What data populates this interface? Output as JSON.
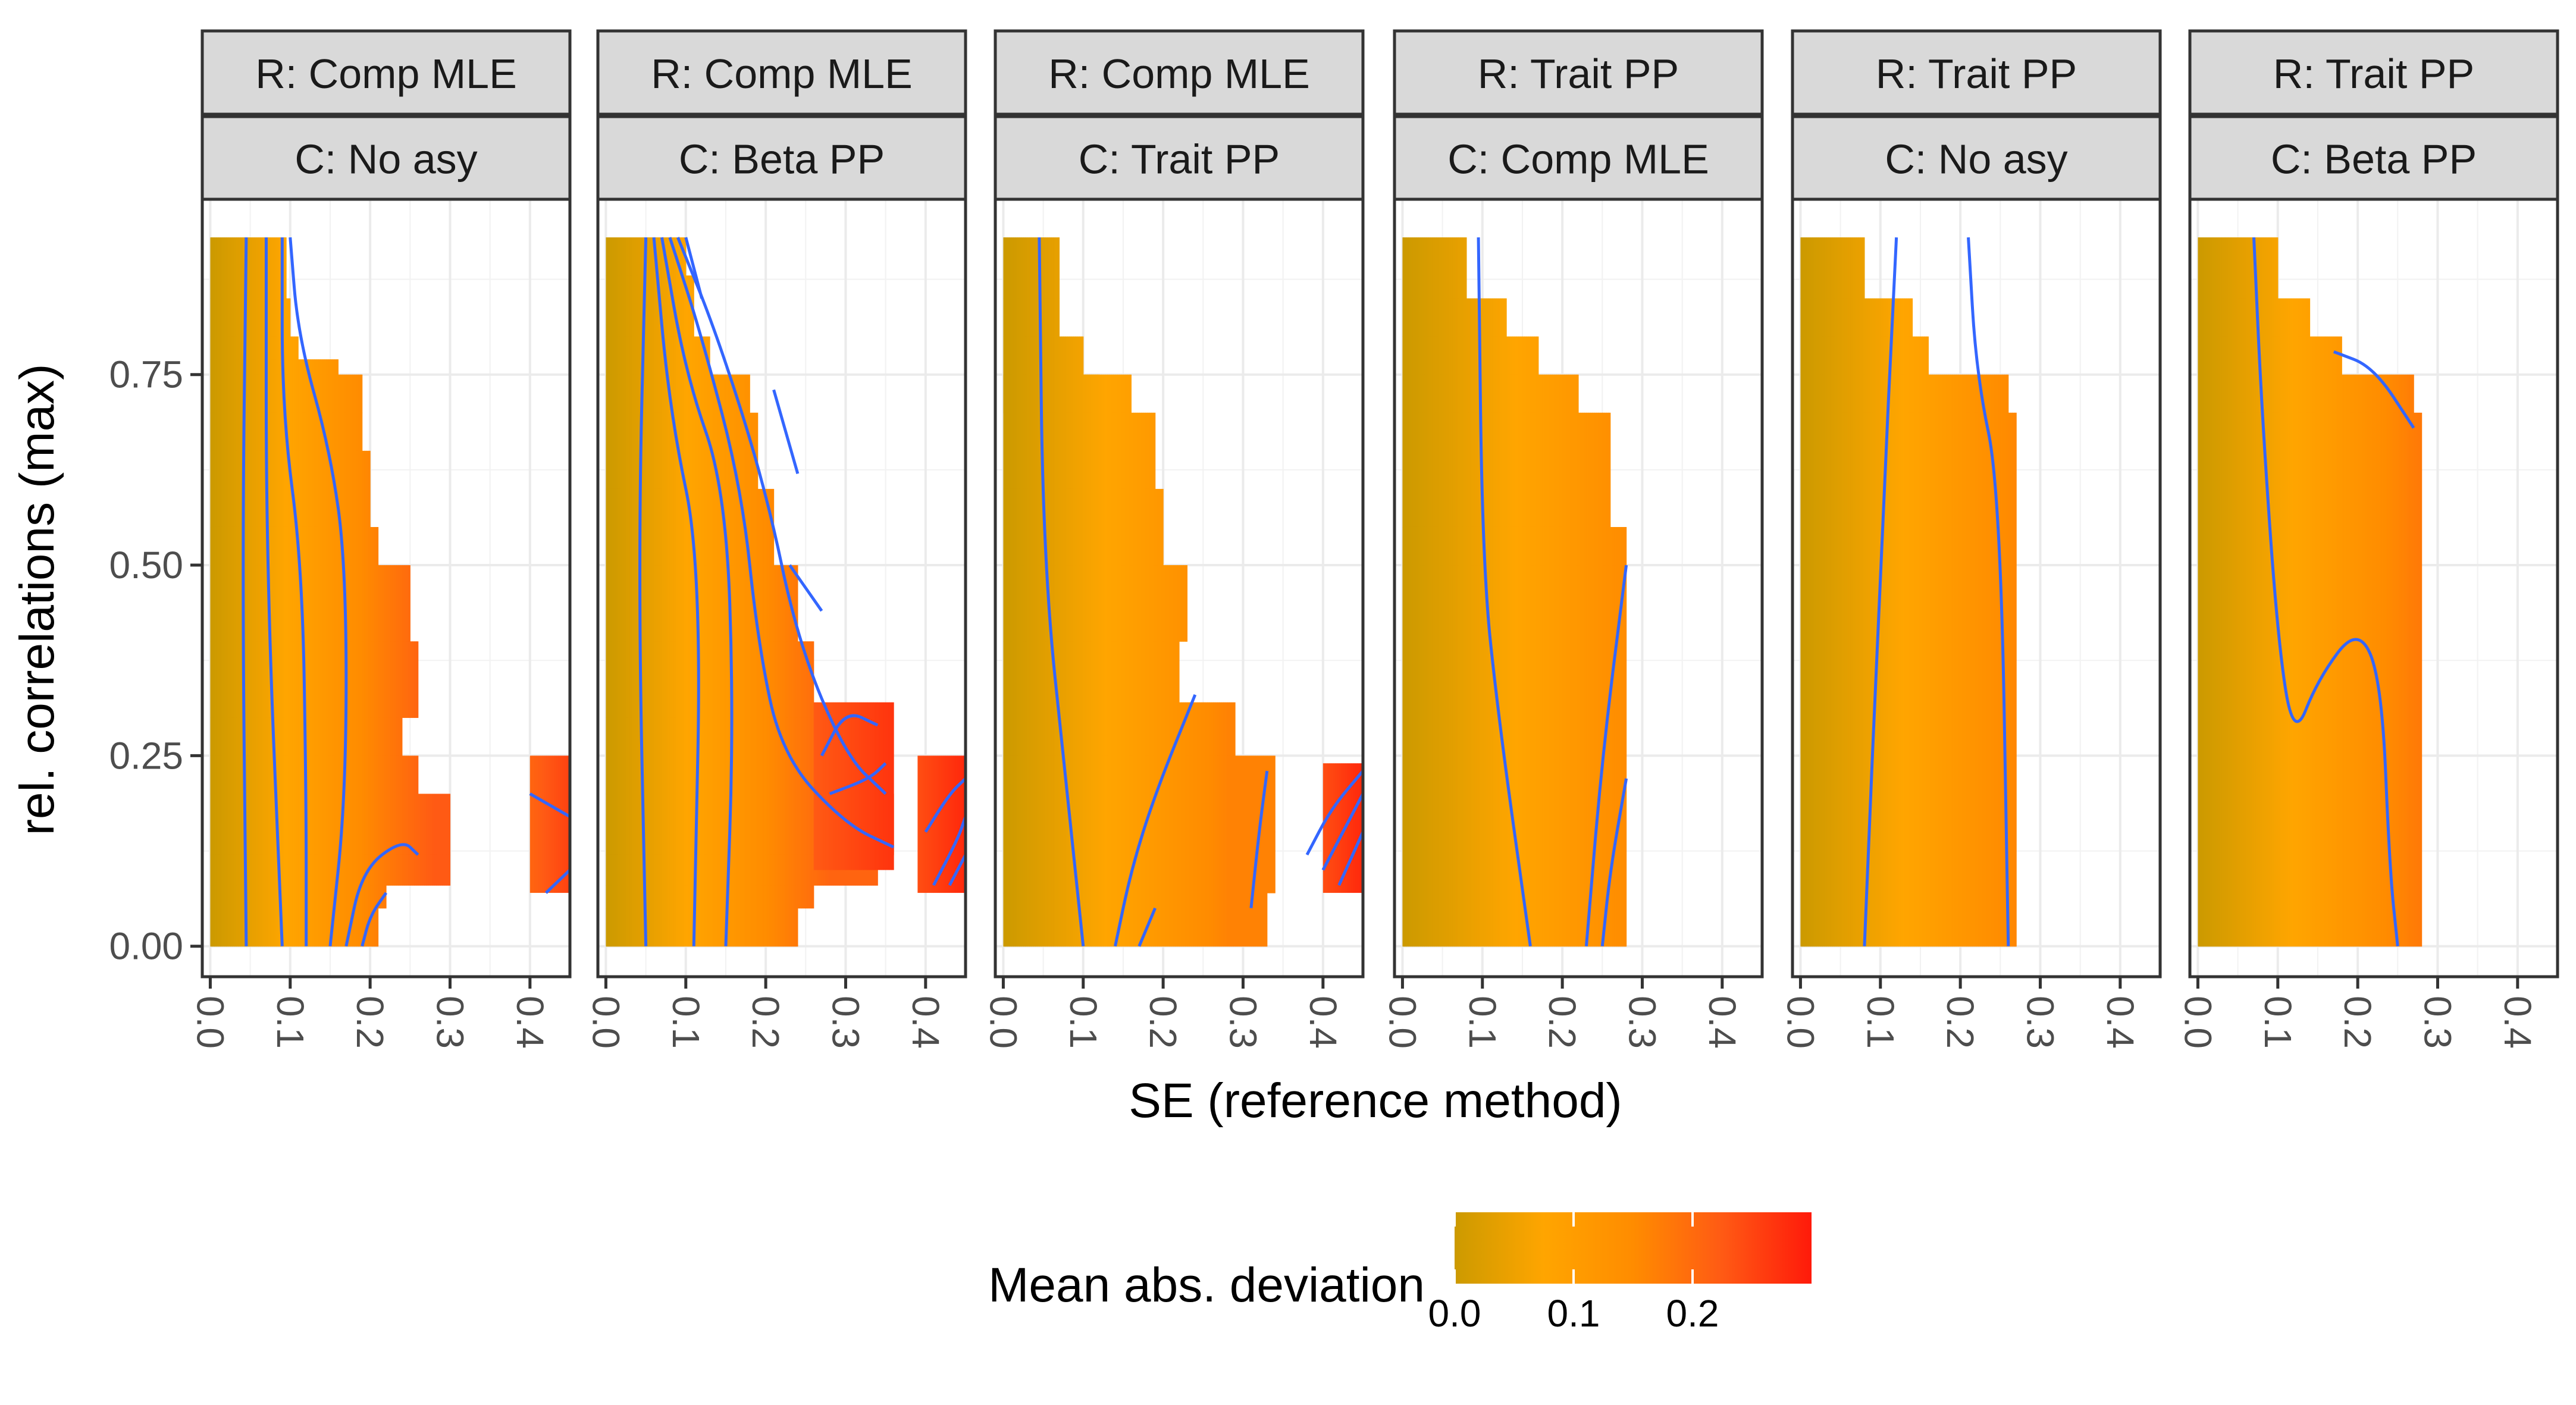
{
  "chart_data": {
    "type": "heatmap",
    "title": "",
    "xlabel": "SE (reference method)",
    "ylabel": "rel. correlations (max)",
    "xlim": [
      -0.01,
      0.45
    ],
    "ylim": [
      -0.04,
      0.98
    ],
    "x_ticks": [
      0.0,
      0.1,
      0.2,
      0.3,
      0.4
    ],
    "x_tick_labels": [
      "0.0",
      "0.1",
      "0.2",
      "0.3",
      "0.4"
    ],
    "y_ticks": [
      0.0,
      0.25,
      0.5,
      0.75
    ],
    "y_tick_labels": [
      "0.00",
      "0.25",
      "0.50",
      "0.75"
    ],
    "grid": true,
    "contour_color": "#3366ff",
    "legend": {
      "title": "Mean abs. deviation",
      "placement": "bottom",
      "range": [
        0.0,
        0.3
      ],
      "ticks": [
        0.0,
        0.1,
        0.2
      ],
      "tick_labels": [
        "0.0",
        "0.1",
        "0.2"
      ],
      "colors": [
        "#cc9a00",
        "#ffa500",
        "#ff8c00",
        "#ff5a14",
        "#ff1a0a"
      ]
    },
    "facets": [
      {
        "row_label": "R: Comp MLE",
        "col_label": "C: No asy",
        "level": 0.75,
        "coverage": [
          [
            0.93,
            0.095
          ],
          [
            0.85,
            0.1
          ],
          [
            0.8,
            0.11
          ],
          [
            0.77,
            0.16
          ],
          [
            0.75,
            0.19
          ],
          [
            0.7,
            0.19
          ],
          [
            0.65,
            0.2
          ],
          [
            0.55,
            0.21
          ],
          [
            0.5,
            0.25
          ],
          [
            0.4,
            0.26
          ],
          [
            0.3,
            0.24
          ],
          [
            0.25,
            0.26
          ],
          [
            0.2,
            0.3
          ],
          [
            0.12,
            0.3
          ],
          [
            0.08,
            0.22
          ],
          [
            0.05,
            0.21
          ],
          [
            0.0,
            0.2
          ]
        ],
        "islands": [
          {
            "x0": 0.4,
            "x1": 0.45,
            "y0": 0.07,
            "y1": 0.25,
            "level": 0.85
          }
        ],
        "contours": [
          [
            [
              0.045,
              0.93
            ],
            [
              0.04,
              0.5
            ],
            [
              0.045,
              0.0
            ]
          ],
          [
            [
              0.07,
              0.93
            ],
            [
              0.07,
              0.5
            ],
            [
              0.09,
              0.0
            ]
          ],
          [
            [
              0.09,
              0.93
            ],
            [
              0.09,
              0.7
            ],
            [
              0.115,
              0.5
            ],
            [
              0.12,
              0.2
            ],
            [
              0.12,
              0.0
            ]
          ],
          [
            [
              0.1,
              0.93
            ],
            [
              0.11,
              0.8
            ],
            [
              0.15,
              0.65
            ],
            [
              0.17,
              0.5
            ],
            [
              0.17,
              0.2
            ],
            [
              0.15,
              0.0
            ]
          ],
          [
            [
              0.17,
              0.0
            ],
            [
              0.19,
              0.1
            ],
            [
              0.24,
              0.14
            ],
            [
              0.26,
              0.12
            ]
          ],
          [
            [
              0.19,
              0.0
            ],
            [
              0.2,
              0.04
            ],
            [
              0.22,
              0.07
            ]
          ],
          [
            [
              0.4,
              0.2
            ],
            [
              0.45,
              0.17
            ]
          ],
          [
            [
              0.42,
              0.07
            ],
            [
              0.45,
              0.1
            ]
          ]
        ]
      },
      {
        "row_label": "R: Comp MLE",
        "col_label": "C: Beta PP",
        "level": 0.7,
        "coverage": [
          [
            0.93,
            0.1
          ],
          [
            0.88,
            0.11
          ],
          [
            0.8,
            0.13
          ],
          [
            0.75,
            0.14
          ],
          [
            0.73,
            0.14
          ],
          [
            0.75,
            0.18
          ],
          [
            0.7,
            0.19
          ],
          [
            0.6,
            0.21
          ],
          [
            0.5,
            0.24
          ],
          [
            0.4,
            0.26
          ],
          [
            0.3,
            0.33
          ],
          [
            0.2,
            0.36
          ],
          [
            0.12,
            0.34
          ],
          [
            0.08,
            0.26
          ],
          [
            0.05,
            0.24
          ],
          [
            0.0,
            0.2
          ]
        ],
        "islands": [
          {
            "x0": 0.39,
            "x1": 0.45,
            "y0": 0.07,
            "y1": 0.25,
            "level": 0.95
          },
          {
            "x0": 0.26,
            "x1": 0.36,
            "y0": 0.1,
            "y1": 0.32,
            "level": 0.9
          }
        ],
        "contours": [
          [
            [
              0.05,
              0.93
            ],
            [
              0.04,
              0.5
            ],
            [
              0.05,
              0.0
            ]
          ],
          [
            [
              0.06,
              0.93
            ],
            [
              0.08,
              0.7
            ],
            [
              0.12,
              0.5
            ],
            [
              0.11,
              0.0
            ]
          ],
          [
            [
              0.07,
              0.93
            ],
            [
              0.1,
              0.75
            ],
            [
              0.15,
              0.6
            ],
            [
              0.16,
              0.3
            ],
            [
              0.15,
              0.0
            ]
          ],
          [
            [
              0.08,
              0.93
            ],
            [
              0.12,
              0.8
            ],
            [
              0.17,
              0.6
            ],
            [
              0.19,
              0.4
            ],
            [
              0.22,
              0.25
            ],
            [
              0.3,
              0.16
            ],
            [
              0.36,
              0.13
            ]
          ],
          [
            [
              0.09,
              0.93
            ],
            [
              0.14,
              0.8
            ],
            [
              0.2,
              0.6
            ],
            [
              0.24,
              0.4
            ],
            [
              0.3,
              0.25
            ],
            [
              0.35,
              0.2
            ]
          ],
          [
            [
              0.1,
              0.93
            ],
            [
              0.12,
              0.85
            ]
          ],
          [
            [
              0.21,
              0.73
            ],
            [
              0.24,
              0.62
            ]
          ],
          [
            [
              0.23,
              0.5
            ],
            [
              0.27,
              0.44
            ]
          ],
          [
            [
              0.27,
              0.25
            ],
            [
              0.3,
              0.31
            ],
            [
              0.34,
              0.29
            ]
          ],
          [
            [
              0.28,
              0.2
            ],
            [
              0.33,
              0.22
            ],
            [
              0.35,
              0.24
            ]
          ],
          [
            [
              0.4,
              0.15
            ],
            [
              0.43,
              0.2
            ],
            [
              0.45,
              0.22
            ]
          ],
          [
            [
              0.41,
              0.08
            ],
            [
              0.44,
              0.14
            ],
            [
              0.45,
              0.17
            ]
          ],
          [
            [
              0.43,
              0.08
            ],
            [
              0.45,
              0.12
            ]
          ]
        ]
      },
      {
        "row_label": "R: Comp MLE",
        "col_label": "C: Trait PP",
        "level": 0.55,
        "coverage": [
          [
            0.93,
            0.07
          ],
          [
            0.85,
            0.07
          ],
          [
            0.8,
            0.1
          ],
          [
            0.75,
            0.12
          ],
          [
            0.7,
            0.12
          ],
          [
            0.72,
            0.14
          ],
          [
            0.75,
            0.16
          ],
          [
            0.7,
            0.19
          ],
          [
            0.6,
            0.2
          ],
          [
            0.5,
            0.23
          ],
          [
            0.4,
            0.22
          ],
          [
            0.32,
            0.29
          ],
          [
            0.25,
            0.34
          ],
          [
            0.15,
            0.34
          ],
          [
            0.07,
            0.33
          ],
          [
            0.0,
            0.23
          ]
        ],
        "islands": [
          {
            "x0": 0.4,
            "x1": 0.45,
            "y0": 0.07,
            "y1": 0.24,
            "level": 0.95
          }
        ],
        "contours": [
          [
            [
              0.045,
              0.93
            ],
            [
              0.05,
              0.5
            ],
            [
              0.08,
              0.2
            ],
            [
              0.1,
              0.0
            ]
          ],
          [
            [
              0.14,
              0.0
            ],
            [
              0.16,
              0.1
            ],
            [
              0.19,
              0.2
            ],
            [
              0.24,
              0.33
            ]
          ],
          [
            [
              0.17,
              0.0
            ],
            [
              0.19,
              0.05
            ]
          ],
          [
            [
              0.31,
              0.05
            ],
            [
              0.32,
              0.15
            ],
            [
              0.33,
              0.23
            ]
          ],
          [
            [
              0.38,
              0.12
            ],
            [
              0.41,
              0.18
            ],
            [
              0.45,
              0.23
            ]
          ],
          [
            [
              0.4,
              0.1
            ],
            [
              0.45,
              0.2
            ]
          ],
          [
            [
              0.42,
              0.08
            ],
            [
              0.45,
              0.15
            ]
          ]
        ]
      },
      {
        "row_label": "R: Trait PP",
        "col_label": "C: Comp MLE",
        "level": 0.5,
        "coverage": [
          [
            0.93,
            0.08
          ],
          [
            0.85,
            0.13
          ],
          [
            0.8,
            0.17
          ],
          [
            0.75,
            0.22
          ],
          [
            0.7,
            0.26
          ],
          [
            0.55,
            0.28
          ],
          [
            0.5,
            0.28
          ],
          [
            0.0,
            0.28
          ]
        ],
        "islands": [],
        "contours": [
          [
            [
              0.095,
              0.93
            ],
            [
              0.1,
              0.5
            ],
            [
              0.12,
              0.3
            ],
            [
              0.16,
              0.0
            ]
          ],
          [
            [
              0.23,
              0.0
            ],
            [
              0.25,
              0.25
            ],
            [
              0.28,
              0.5
            ]
          ],
          [
            [
              0.25,
              0.0
            ],
            [
              0.26,
              0.1
            ],
            [
              0.28,
              0.22
            ]
          ]
        ]
      },
      {
        "row_label": "R: Trait PP",
        "col_label": "C: No asy",
        "level": 0.55,
        "coverage": [
          [
            0.93,
            0.08
          ],
          [
            0.85,
            0.14
          ],
          [
            0.8,
            0.16
          ],
          [
            0.75,
            0.26
          ],
          [
            0.7,
            0.27
          ],
          [
            0.0,
            0.27
          ]
        ],
        "islands": [],
        "contours": [
          [
            [
              0.12,
              0.93
            ],
            [
              0.1,
              0.5
            ],
            [
              0.08,
              0.0
            ]
          ],
          [
            [
              0.21,
              0.93
            ],
            [
              0.22,
              0.75
            ],
            [
              0.25,
              0.6
            ],
            [
              0.26,
              0.0
            ]
          ]
        ]
      },
      {
        "row_label": "R: Trait PP",
        "col_label": "C: Beta PP",
        "level": 0.6,
        "coverage": [
          [
            0.93,
            0.1
          ],
          [
            0.85,
            0.14
          ],
          [
            0.8,
            0.18
          ],
          [
            0.75,
            0.27
          ],
          [
            0.7,
            0.28
          ],
          [
            0.0,
            0.28
          ]
        ],
        "islands": [],
        "contours": [
          [
            [
              0.07,
              0.93
            ],
            [
              0.08,
              0.7
            ],
            [
              0.1,
              0.4
            ],
            [
              0.12,
              0.27
            ],
            [
              0.15,
              0.35
            ],
            [
              0.2,
              0.42
            ],
            [
              0.23,
              0.35
            ],
            [
              0.24,
              0.1
            ],
            [
              0.25,
              0.0
            ]
          ],
          [
            [
              0.17,
              0.78
            ],
            [
              0.22,
              0.76
            ],
            [
              0.27,
              0.68
            ]
          ]
        ]
      }
    ]
  }
}
